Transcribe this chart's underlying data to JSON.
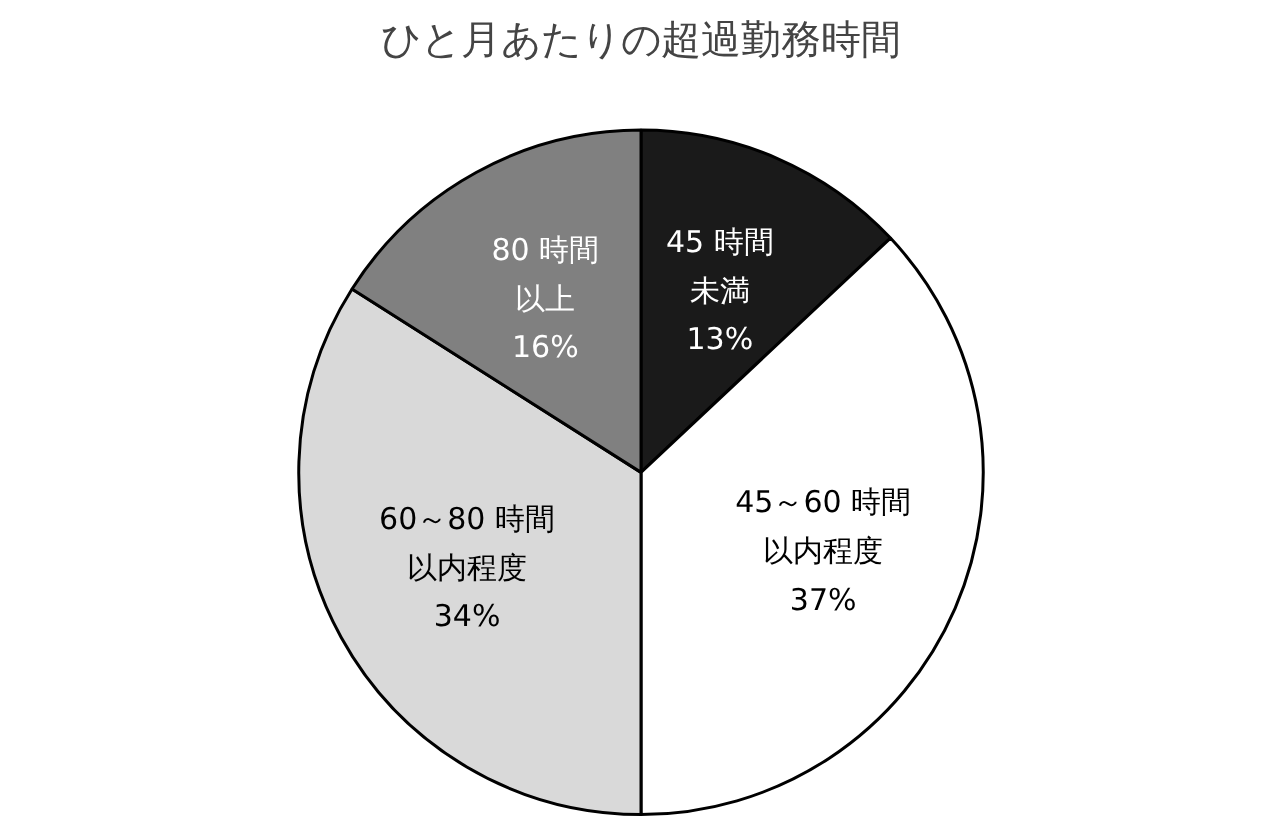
{
  "chart_data": {
    "type": "pie",
    "title": "ひと月あたりの超過勤務時間",
    "categories": [
      "45 時間未満",
      "45～60 時間以内程度",
      "60～80 時間以内程度",
      "80 時間以上"
    ],
    "values": [
      13,
      37,
      34,
      16
    ],
    "value_labels": [
      "13%",
      "37%",
      "34%",
      "16%"
    ],
    "colors": [
      "#1a1a1a",
      "#ffffff",
      "#d9d9d9",
      "#808080"
    ]
  }
}
